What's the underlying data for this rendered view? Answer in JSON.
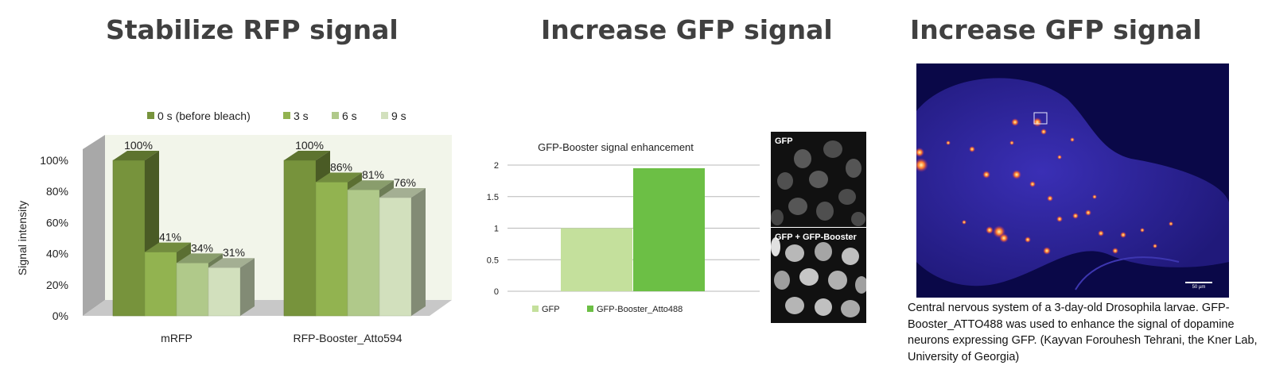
{
  "panels": [
    {
      "title": "Stabilize RFP signal"
    },
    {
      "title": "Increase GFP signal"
    },
    {
      "title": "Increase GFP signal"
    }
  ],
  "chart_data": [
    {
      "type": "bar",
      "title": "",
      "ylabel": "Signal intensity",
      "xlabel": "",
      "ylim": [
        0,
        100
      ],
      "yticks": [
        "0%",
        "20%",
        "40%",
        "60%",
        "80%",
        "100%"
      ],
      "categories": [
        "mRFP",
        "RFP-Booster_Atto594"
      ],
      "series": [
        {
          "name": "0 s (before bleach)",
          "values": [
            100,
            100
          ],
          "labels": [
            "100%",
            "100%"
          ],
          "color": "#77933c"
        },
        {
          "name": "3 s",
          "values": [
            41,
            86
          ],
          "labels": [
            "41%",
            "86%"
          ],
          "color": "#92b350"
        },
        {
          "name": "6 s",
          "values": [
            34,
            81
          ],
          "labels": [
            "34%",
            "81%"
          ],
          "color": "#b0c98a"
        },
        {
          "name": "9 s",
          "values": [
            31,
            76
          ],
          "labels": [
            "31%",
            "76%"
          ],
          "color": "#d2e0bd"
        }
      ],
      "legend_position": "top",
      "grid": false
    },
    {
      "type": "bar",
      "title": "GFP-Booster  signal enhancement",
      "xlabel": "",
      "ylabel": "",
      "ylim": [
        0,
        2
      ],
      "yticks": [
        "0",
        "0.5",
        "1",
        "1.5",
        "2"
      ],
      "series": [
        {
          "name": "GFP",
          "values": [
            1
          ],
          "color": "#c4e09c"
        },
        {
          "name": "GFP-Booster_Atto488",
          "values": [
            1.95
          ],
          "color": "#6cbf45"
        }
      ],
      "legend_position": "bottom",
      "grid": true
    }
  ],
  "micrographs": {
    "top_label": "GFP",
    "bottom_label": "GFP + GFP-Booster"
  },
  "drosophila": {
    "scale_bar_label": "50 µm",
    "caption": "Central nervous system of a 3-day-old Drosophila larvae.  GFP-Booster_ATTO488 was used to enhance the signal of  dopamine neurons expressing GFP. (Kayvan Forouhesh  Tehrani, the Kner Lab, University of Georgia)"
  }
}
